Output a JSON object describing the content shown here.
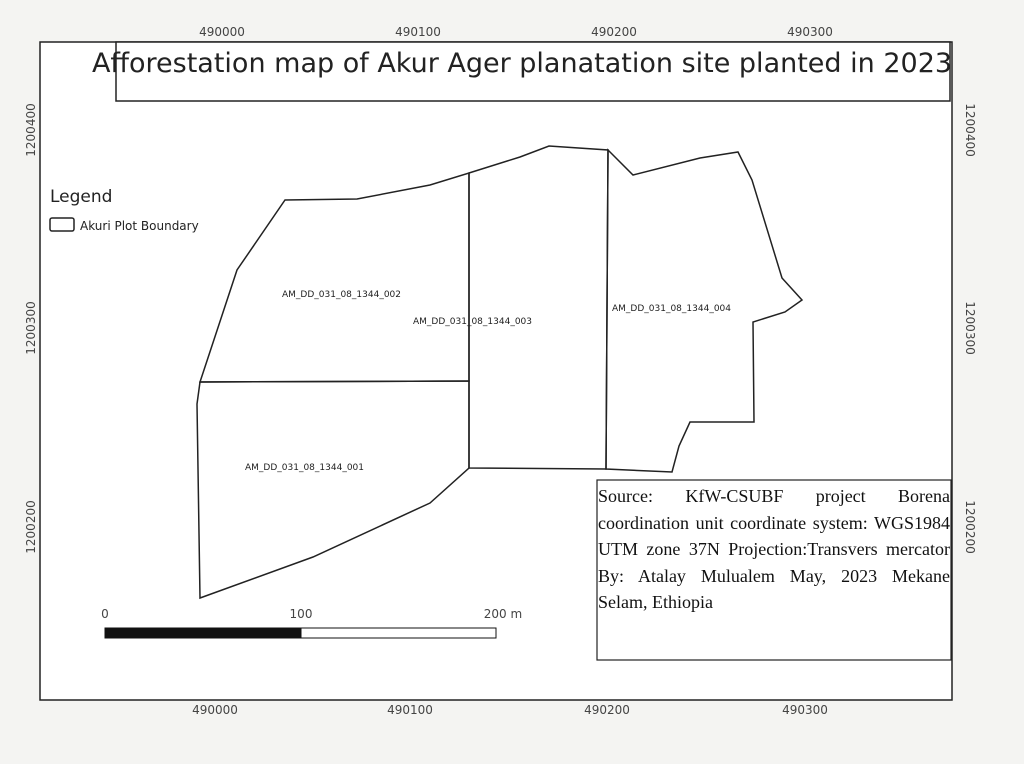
{
  "title": "Afforestation map of Akur Ager planatation site planted in 2023",
  "legend": {
    "title": "Legend",
    "items": [
      "Akuri Plot Boundary"
    ]
  },
  "plots": [
    "AM_DD_031_08_1344_001",
    "AM_DD_031_08_1344_002",
    "AM_DD_031_08_1344_003",
    "AM_DD_031_08_1344_004"
  ],
  "grid": {
    "x_top": [
      490000,
      490100,
      490200,
      490300
    ],
    "x_bottom": [
      490000,
      490100,
      490200,
      490300
    ],
    "y_left": [
      1200400,
      1200300,
      1200200
    ],
    "y_right": [
      1200400,
      1200300,
      1200200
    ]
  },
  "scale_bar": {
    "labels": [
      "0",
      "100",
      "200 m"
    ]
  },
  "source": "Source: KfW-CSUBF project Borena coordination unit coordinate system: WGS1984 UTM zone 37N Projection:Transvers mercator By: Atalay Mulualem May, 2023 Mekane Selam, Ethiopia"
}
